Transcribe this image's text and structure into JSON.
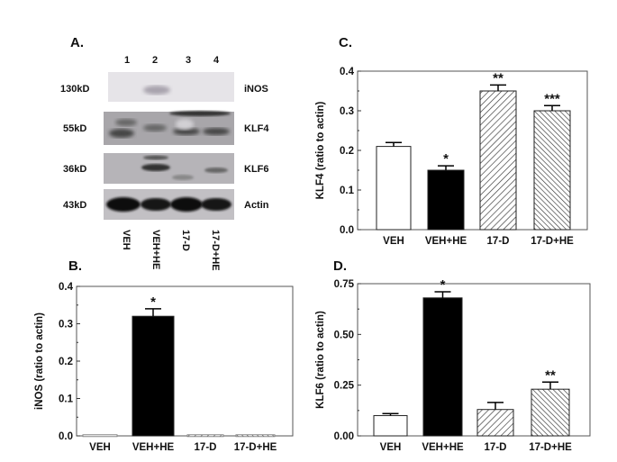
{
  "blot": {
    "panel_label": "A.",
    "lane_numbers": [
      "1",
      "2",
      "3",
      "4"
    ],
    "rows": [
      {
        "mw": "130kD",
        "protein": "iNOS"
      },
      {
        "mw": "55kD",
        "protein": "KLF4"
      },
      {
        "mw": "36kD",
        "protein": "KLF6"
      },
      {
        "mw": "43kD",
        "protein": "Actin"
      }
    ],
    "lane_labels": [
      "VEH",
      "VEH+HE",
      "17-D",
      "17-D+HE"
    ]
  },
  "chart_data": [
    {
      "id": "B",
      "panel_label": "B.",
      "type": "bar",
      "ylabel": "iNOS (ratio to actin)",
      "categories": [
        "VEH",
        "VEH+HE",
        "17-D",
        "17-D+HE"
      ],
      "values": [
        0.003,
        0.32,
        0.003,
        0.003
      ],
      "errors": [
        0,
        0.02,
        0,
        0
      ],
      "significance": [
        "",
        "*",
        "",
        ""
      ],
      "fills": [
        "open",
        "solid",
        "hatch-right",
        "hatch-left"
      ],
      "ylim": [
        0,
        0.4
      ],
      "yticks": [
        "0.0",
        "0.1",
        "0.2",
        "0.3",
        "0.4"
      ]
    },
    {
      "id": "C",
      "panel_label": "C.",
      "type": "bar",
      "ylabel": "KLF4 (ratio to actin)",
      "categories": [
        "VEH",
        "VEH+HE",
        "17-D",
        "17-D+HE"
      ],
      "values": [
        0.21,
        0.15,
        0.35,
        0.3
      ],
      "errors": [
        0.01,
        0.011,
        0.015,
        0.013
      ],
      "significance": [
        "",
        "*",
        "**",
        "***"
      ],
      "fills": [
        "open",
        "solid",
        "hatch-right",
        "hatch-left"
      ],
      "ylim": [
        0,
        0.4
      ],
      "yticks": [
        "0.0",
        "0.1",
        "0.2",
        "0.3",
        "0.4"
      ]
    },
    {
      "id": "D",
      "panel_label": "D.",
      "type": "bar",
      "ylabel": "KLF6 (ratio to actin)",
      "categories": [
        "VEH",
        "VEH+HE",
        "17-D",
        "17-D+HE"
      ],
      "values": [
        0.1,
        0.68,
        0.13,
        0.23
      ],
      "errors": [
        0.01,
        0.03,
        0.035,
        0.035
      ],
      "significance": [
        "",
        "*",
        "",
        "**"
      ],
      "fills": [
        "open",
        "solid",
        "hatch-right",
        "hatch-left"
      ],
      "ylim": [
        0,
        0.75
      ],
      "yticks": [
        "0.00",
        "0.25",
        "0.50",
        "0.75"
      ]
    }
  ]
}
